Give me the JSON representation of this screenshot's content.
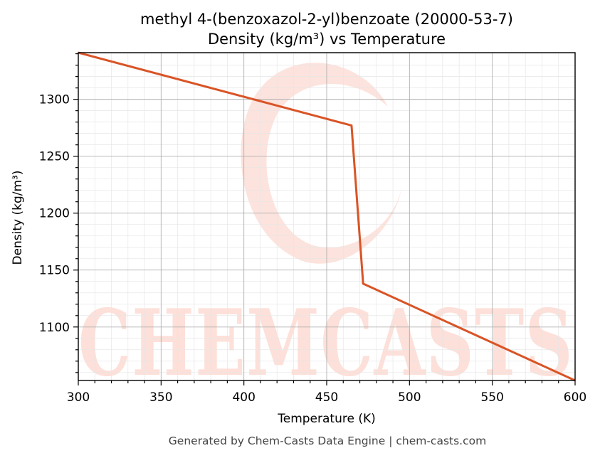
{
  "chart_data": {
    "type": "line",
    "title": "methyl 4-(benzoxazol-2-yl)benzoate (20000-53-7)",
    "subtitle": "Density (kg/m³) vs Temperature",
    "xlabel": "Temperature (K)",
    "ylabel": "Density (kg/m³)",
    "xlim": [
      300,
      600
    ],
    "ylim": [
      1053,
      1341
    ],
    "x_ticks": [
      300,
      350,
      400,
      450,
      500,
      550,
      600
    ],
    "y_ticks": [
      1100,
      1150,
      1200,
      1250,
      1300
    ],
    "grid": true,
    "series": [
      {
        "color": "#d95426",
        "x": [
          300,
          465,
          472,
          600
        ],
        "y": [
          1341,
          1277,
          1138,
          1053
        ]
      }
    ]
  },
  "watermark": {
    "text": "CHEMCASTS",
    "color": "#fde0d9"
  },
  "footer": "Generated by Chem-Casts Data Engine | chem-casts.com"
}
